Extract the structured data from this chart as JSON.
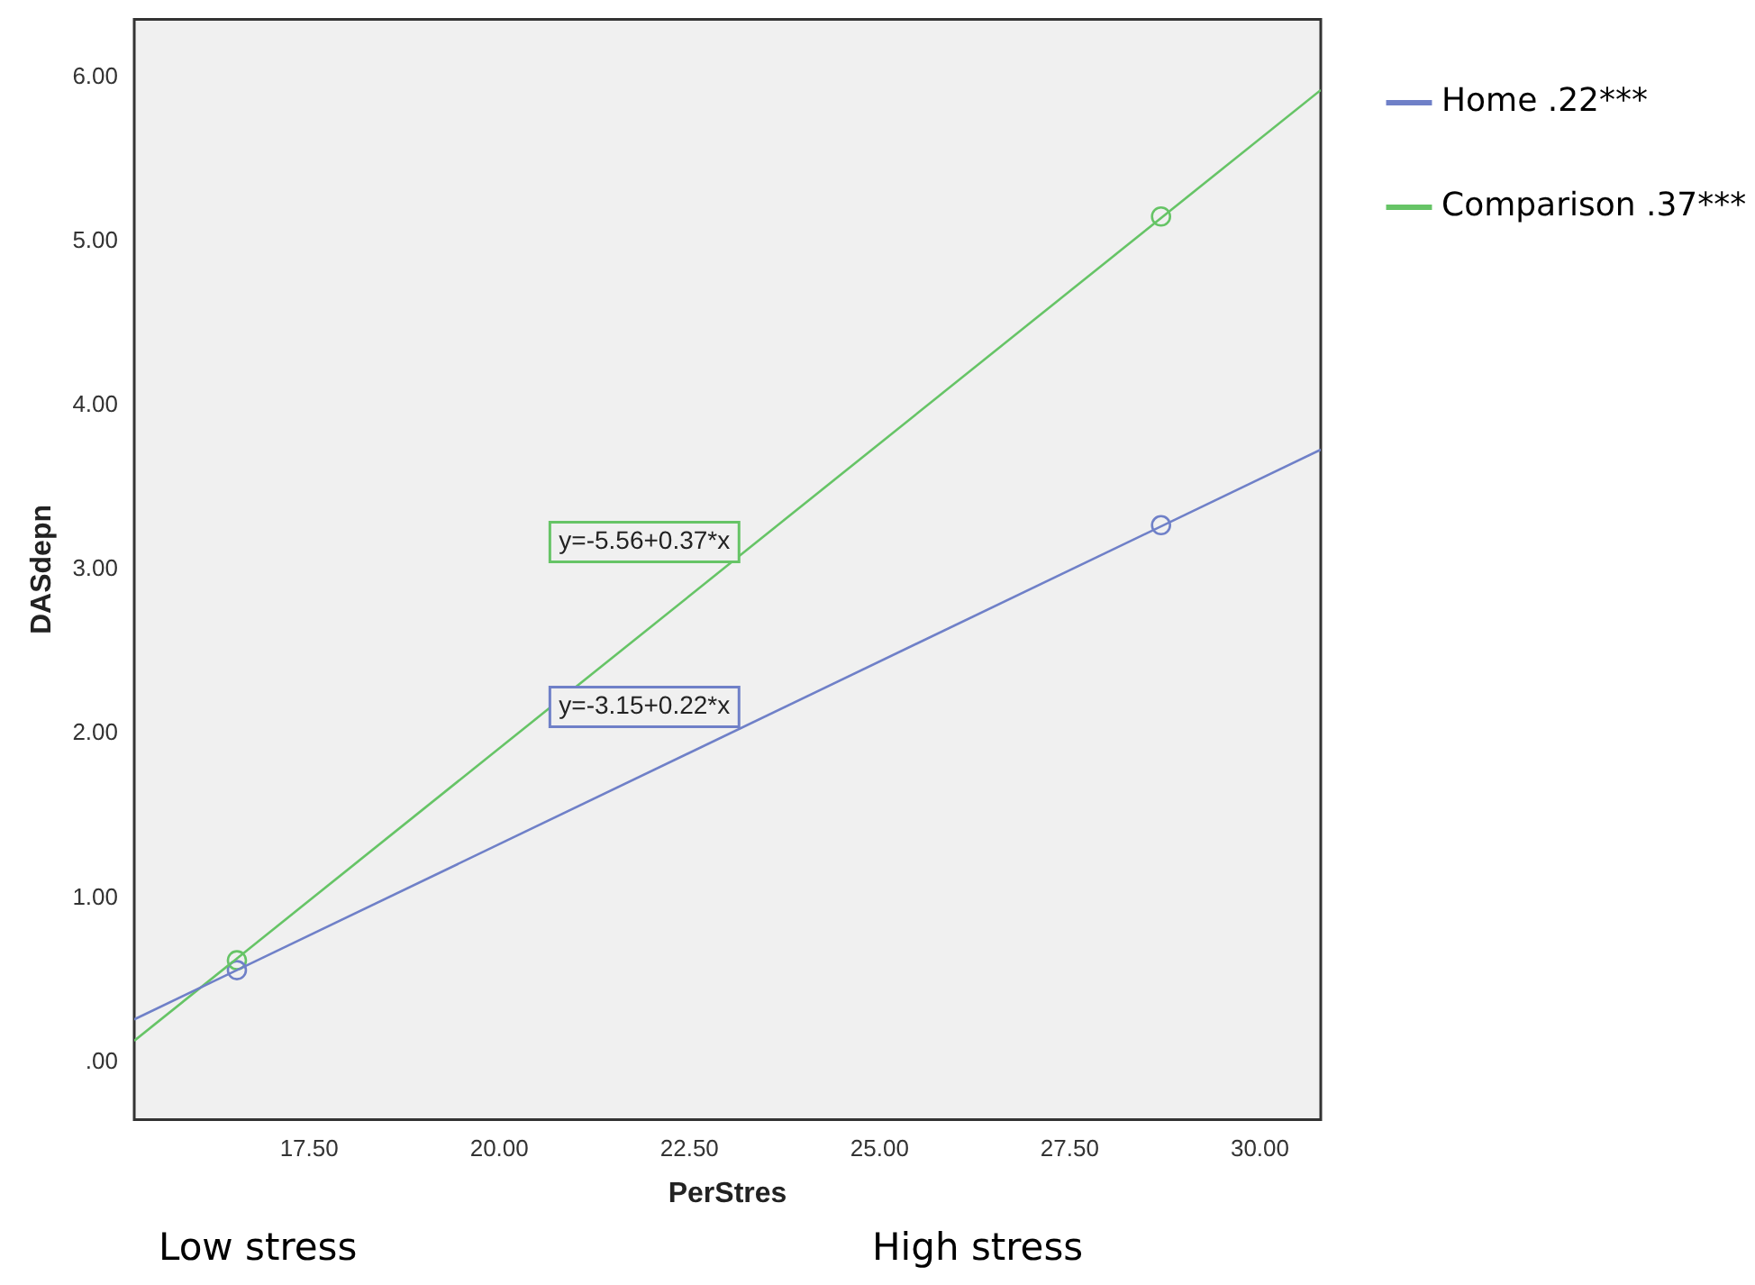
{
  "chart_data": {
    "type": "line",
    "xlabel": "PerStres",
    "ylabel": "DASdepn",
    "xlim": [
      15.2,
      30.8
    ],
    "ylim": [
      -0.35,
      6.35
    ],
    "xticks": [
      {
        "value": 17.5,
        "label": "17.50"
      },
      {
        "value": 20,
        "label": "20.00"
      },
      {
        "value": 22.5,
        "label": "22.50"
      },
      {
        "value": 25,
        "label": "25.00"
      },
      {
        "value": 27.5,
        "label": "27.50"
      },
      {
        "value": 30,
        "label": "30.00"
      }
    ],
    "yticks": [
      {
        "value": 0,
        "label": ".00"
      },
      {
        "value": 1,
        "label": "1.00"
      },
      {
        "value": 2,
        "label": "2.00"
      },
      {
        "value": 3,
        "label": "3.00"
      },
      {
        "value": 4,
        "label": "4.00"
      },
      {
        "value": 5,
        "label": "5.00"
      },
      {
        "value": 6,
        "label": "6.00"
      }
    ],
    "series": [
      {
        "name": "Home .22***",
        "color": "#6f80c8",
        "x": [
          15.2,
          30.8
        ],
        "values": [
          0.26,
          3.73
        ]
      },
      {
        "name": "Comparison .37***",
        "color": "#66c466",
        "x": [
          15.2,
          30.8
        ],
        "values": [
          0.13,
          5.92
        ]
      },
      {
        "type": "scatter",
        "color": "#6f80c8",
        "x": [
          16.55,
          28.7
        ],
        "values": [
          0.56,
          3.27
        ],
        "marker": "circle"
      },
      {
        "type": "scatter",
        "color": "#66c466",
        "x": [
          16.55,
          28.7
        ],
        "values": [
          0.62,
          5.15
        ],
        "marker": "circle"
      }
    ],
    "legend": "right",
    "grid": false,
    "annotations": [
      "y=-3.15+0.22*x",
      "y=-5.56+0.37*x",
      "Low stress",
      "High stress"
    ]
  }
}
